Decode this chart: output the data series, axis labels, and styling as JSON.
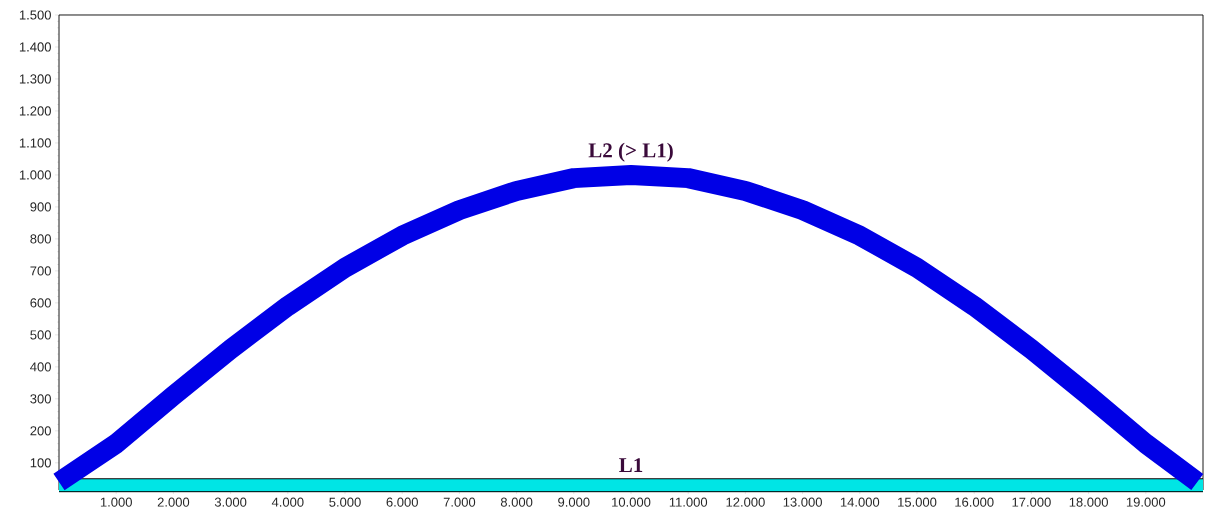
{
  "chart_data": {
    "type": "line",
    "xlim": [
      0,
      20000
    ],
    "ylim": [
      15,
      1500
    ],
    "grid": false,
    "marker": "none",
    "line_style": "solid",
    "xticks": [
      {
        "value": 1000,
        "label": "1.000"
      },
      {
        "value": 2000,
        "label": "2.000"
      },
      {
        "value": 3000,
        "label": "3.000"
      },
      {
        "value": 4000,
        "label": "4.000"
      },
      {
        "value": 5000,
        "label": "5.000"
      },
      {
        "value": 6000,
        "label": "6.000"
      },
      {
        "value": 7000,
        "label": "7.000"
      },
      {
        "value": 8000,
        "label": "8.000"
      },
      {
        "value": 9000,
        "label": "9.000"
      },
      {
        "value": 10000,
        "label": "10.000"
      },
      {
        "value": 11000,
        "label": "11.000"
      },
      {
        "value": 12000,
        "label": "12.000"
      },
      {
        "value": 13000,
        "label": "13.000"
      },
      {
        "value": 14000,
        "label": "14.000"
      },
      {
        "value": 15000,
        "label": "15.000"
      },
      {
        "value": 16000,
        "label": "16.000"
      },
      {
        "value": 17000,
        "label": "17.000"
      },
      {
        "value": 18000,
        "label": "18.000"
      },
      {
        "value": 19000,
        "label": "19.000"
      }
    ],
    "yticks": [
      100,
      200,
      300,
      400,
      500,
      600,
      700,
      800,
      900,
      {
        "value": 1000,
        "label": "1.000"
      },
      {
        "value": 1100,
        "label": "1.100"
      },
      {
        "value": 1200,
        "label": "1.200"
      },
      {
        "value": 1300,
        "label": "1.300"
      },
      {
        "value": 1400,
        "label": "1.400"
      },
      {
        "value": 1500,
        "label": "1.500"
      }
    ],
    "series": [
      {
        "color": "#00e5e5",
        "x": [
          0,
          20000
        ],
        "values": [
          30,
          30
        ]
      },
      {
        "color": "#0000e6",
        "x": [
          0,
          1000,
          2000,
          3000,
          4000,
          5000,
          6000,
          7000,
          8000,
          9000,
          10000,
          11000,
          12000,
          13000,
          14000,
          15000,
          16000,
          17000,
          18000,
          19000,
          19900
        ],
        "values": [
          40,
          160,
          310,
          455,
          590,
          710,
          810,
          890,
          950,
          990,
          1000,
          990,
          950,
          890,
          810,
          710,
          590,
          455,
          310,
          160,
          40
        ]
      }
    ],
    "annotations": [
      {
        "text": "L2 (> L1)",
        "x": 10000,
        "y": 1000
      },
      {
        "text": "L1",
        "x": 10000,
        "y": 30
      }
    ]
  }
}
